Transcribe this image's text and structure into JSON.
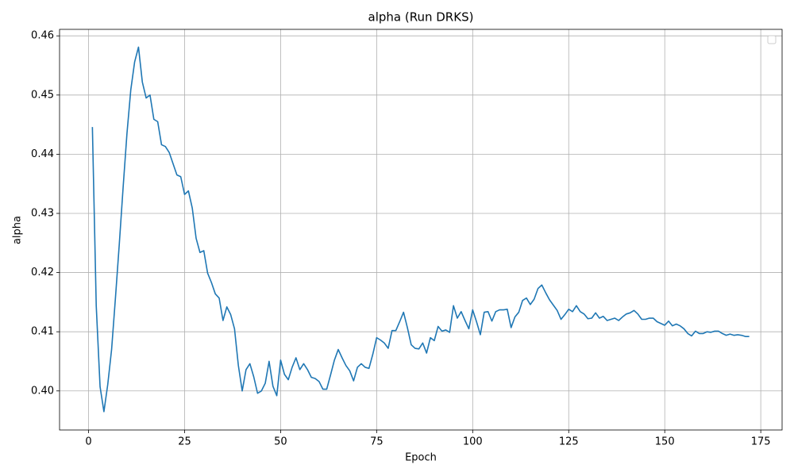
{
  "chart_data": {
    "type": "line",
    "title": "alpha (Run DRKS)",
    "xlabel": "Epoch",
    "ylabel": "alpha",
    "x": [
      1,
      2,
      3,
      4,
      5,
      6,
      7,
      8,
      9,
      10,
      11,
      12,
      13,
      14,
      15,
      16,
      17,
      18,
      19,
      20,
      21,
      22,
      23,
      24,
      25,
      26,
      27,
      28,
      29,
      30,
      31,
      32,
      33,
      34,
      35,
      36,
      37,
      38,
      39,
      40,
      41,
      42,
      43,
      44,
      45,
      46,
      47,
      48,
      49,
      50,
      51,
      52,
      53,
      54,
      55,
      56,
      57,
      58,
      59,
      60,
      61,
      62,
      63,
      64,
      65,
      66,
      67,
      68,
      69,
      70,
      71,
      72,
      73,
      74,
      75,
      76,
      77,
      78,
      79,
      80,
      81,
      82,
      83,
      84,
      85,
      86,
      87,
      88,
      89,
      90,
      91,
      92,
      93,
      94,
      95,
      96,
      97,
      98,
      99,
      100,
      101,
      102,
      103,
      104,
      105,
      106,
      107,
      108,
      109,
      110,
      111,
      112,
      113,
      114,
      115,
      116,
      117,
      118,
      119,
      120,
      121,
      122,
      123,
      124,
      125,
      126,
      127,
      128,
      129,
      130,
      131,
      132,
      133,
      134,
      135,
      136,
      137,
      138,
      139,
      140,
      141,
      142,
      143,
      144,
      145,
      146,
      147,
      148,
      149,
      150,
      151,
      152,
      153,
      154,
      155,
      156,
      157,
      158,
      159,
      160,
      161,
      162,
      163,
      164,
      165,
      166,
      167,
      168,
      169,
      170,
      171,
      172
    ],
    "values": [
      0.4446,
      0.4144,
      0.4007,
      0.3965,
      0.4011,
      0.407,
      0.4157,
      0.4248,
      0.4344,
      0.4435,
      0.4509,
      0.4556,
      0.4581,
      0.4522,
      0.4495,
      0.45,
      0.4459,
      0.4455,
      0.4416,
      0.4413,
      0.4403,
      0.4384,
      0.4365,
      0.4362,
      0.4332,
      0.4338,
      0.4309,
      0.4258,
      0.4234,
      0.4237,
      0.4199,
      0.4183,
      0.4164,
      0.4157,
      0.4119,
      0.4142,
      0.4129,
      0.4105,
      0.4043,
      0.4,
      0.4036,
      0.4046,
      0.4024,
      0.3996,
      0.4,
      0.4013,
      0.405,
      0.4008,
      0.3992,
      0.4052,
      0.4028,
      0.4019,
      0.404,
      0.4056,
      0.4036,
      0.4046,
      0.4036,
      0.4023,
      0.4021,
      0.4016,
      0.4003,
      0.4003,
      0.4027,
      0.4052,
      0.407,
      0.4056,
      0.4043,
      0.4034,
      0.4017,
      0.404,
      0.4046,
      0.404,
      0.4038,
      0.4062,
      0.409,
      0.4086,
      0.4081,
      0.4072,
      0.4102,
      0.4102,
      0.4117,
      0.4133,
      0.4107,
      0.4078,
      0.4072,
      0.4071,
      0.4081,
      0.4064,
      0.409,
      0.4085,
      0.4109,
      0.4101,
      0.4103,
      0.4099,
      0.4144,
      0.4123,
      0.4134,
      0.4119,
      0.4105,
      0.4137,
      0.4117,
      0.4095,
      0.4133,
      0.4134,
      0.4118,
      0.4134,
      0.4137,
      0.4137,
      0.4138,
      0.4107,
      0.4125,
      0.4133,
      0.4153,
      0.4157,
      0.4146,
      0.4155,
      0.4173,
      0.4179,
      0.4166,
      0.4154,
      0.4145,
      0.4136,
      0.4121,
      0.4129,
      0.4138,
      0.4134,
      0.4144,
      0.4134,
      0.413,
      0.4122,
      0.4123,
      0.4132,
      0.4123,
      0.4126,
      0.4119,
      0.4121,
      0.4123,
      0.4119,
      0.4125,
      0.413,
      0.4132,
      0.4136,
      0.413,
      0.4121,
      0.4121,
      0.4123,
      0.4123,
      0.4117,
      0.4114,
      0.4111,
      0.4118,
      0.411,
      0.4113,
      0.411,
      0.4105,
      0.4097,
      0.4093,
      0.4101,
      0.4097,
      0.4097,
      0.41,
      0.4099,
      0.4101,
      0.4101,
      0.4097,
      0.4094,
      0.4096,
      0.4094,
      0.4095,
      0.4094,
      0.4092,
      0.4092
    ],
    "color": "#1f77b4",
    "xlim": [
      -7.55,
      180.55
    ],
    "xticks": [
      0,
      25,
      50,
      75,
      100,
      125,
      150,
      175
    ],
    "ylim": [
      0.3934,
      0.4611
    ],
    "yticks": [
      {
        "value": 0.4,
        "label": "0.40"
      },
      0.41,
      0.42,
      0.43,
      0.44,
      0.45,
      0.46
    ],
    "grid": true,
    "legend": "upper right"
  }
}
